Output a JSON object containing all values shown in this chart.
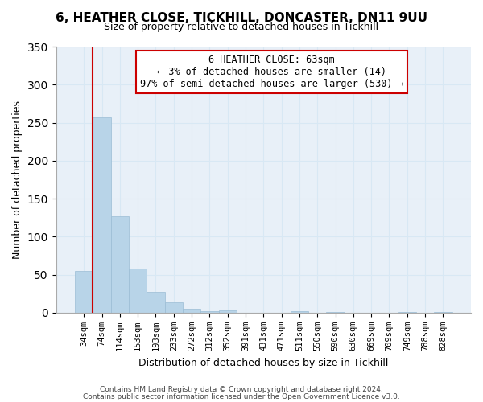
{
  "title_line1": "6, HEATHER CLOSE, TICKHILL, DONCASTER, DN11 9UU",
  "title_line2": "Size of property relative to detached houses in Tickhill",
  "xlabel": "Distribution of detached houses by size in Tickhill",
  "ylabel": "Number of detached properties",
  "bar_labels": [
    "34sqm",
    "74sqm",
    "114sqm",
    "153sqm",
    "193sqm",
    "233sqm",
    "272sqm",
    "312sqm",
    "352sqm",
    "391sqm",
    "431sqm",
    "471sqm",
    "511sqm",
    "550sqm",
    "590sqm",
    "630sqm",
    "669sqm",
    "709sqm",
    "749sqm",
    "788sqm",
    "828sqm"
  ],
  "bar_values": [
    55,
    257,
    127,
    58,
    27,
    14,
    5,
    2,
    3,
    0,
    0,
    0,
    2,
    0,
    1,
    0,
    0,
    0,
    1,
    0,
    1
  ],
  "bar_color": "#b8d4e8",
  "bar_edge_color": "#9bbdd4",
  "annotation_title": "6 HEATHER CLOSE: 63sqm",
  "annotation_line1": "← 3% of detached houses are smaller (14)",
  "annotation_line2": "97% of semi-detached houses are larger (530) →",
  "annotation_box_facecolor": "#ffffff",
  "annotation_box_edgecolor": "#cc0000",
  "red_line_color": "#cc0000",
  "ylim": [
    0,
    350
  ],
  "yticks": [
    0,
    50,
    100,
    150,
    200,
    250,
    300,
    350
  ],
  "grid_color": "#d8e8f4",
  "plot_bg_color": "#e8f0f8",
  "fig_bg_color": "#ffffff",
  "footer_line1": "Contains HM Land Registry data © Crown copyright and database right 2024.",
  "footer_line2": "Contains public sector information licensed under the Open Government Licence v3.0.",
  "title_fontsize": 11,
  "subtitle_fontsize": 9,
  "ylabel_text": "Number of detached properties"
}
